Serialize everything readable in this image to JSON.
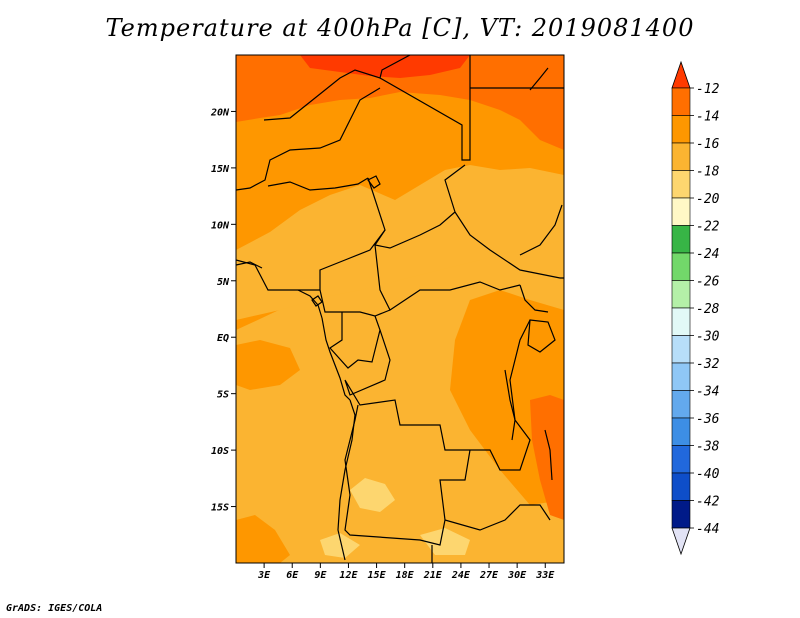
{
  "title": "Temperature at 400hPa [C], VT: 2019081400",
  "credit": "GrADS: IGES/COLA",
  "map": {
    "lon_range": [
      0,
      35
    ],
    "lat_range": [
      -20,
      25
    ],
    "lat_ticks": [
      {
        "value": 20,
        "label": "20N"
      },
      {
        "value": 15,
        "label": "15N"
      },
      {
        "value": 10,
        "label": "10N"
      },
      {
        "value": 5,
        "label": "5N"
      },
      {
        "value": 0,
        "label": "EQ"
      },
      {
        "value": -5,
        "label": "5S"
      },
      {
        "value": -10,
        "label": "10S"
      },
      {
        "value": -15,
        "label": "15S"
      }
    ],
    "lon_ticks": [
      {
        "value": 3,
        "label": "3E"
      },
      {
        "value": 6,
        "label": "6E"
      },
      {
        "value": 9,
        "label": "9E"
      },
      {
        "value": 12,
        "label": "12E"
      },
      {
        "value": 15,
        "label": "15E"
      },
      {
        "value": 18,
        "label": "18E"
      },
      {
        "value": 21,
        "label": "21E"
      },
      {
        "value": 24,
        "label": "24E"
      },
      {
        "value": 27,
        "label": "27E"
      },
      {
        "value": 30,
        "label": "30E"
      },
      {
        "value": 33,
        "label": "33E"
      }
    ]
  },
  "colorbar": {
    "levels": [
      "-12",
      "-14",
      "-16",
      "-18",
      "-20",
      "-22",
      "-24",
      "-26",
      "-28",
      "-30",
      "-32",
      "-34",
      "-36",
      "-38",
      "-40",
      "-42",
      "-44"
    ],
    "colors": [
      "#ff6f00",
      "#fe9700",
      "#fbb431",
      "#fdd66f",
      "#fff8c6",
      "#37b546",
      "#72d86a",
      "#b4f0a8",
      "#e2f9f7",
      "#b7def9",
      "#8fc7f6",
      "#63a9ed",
      "#3d8ee5",
      "#2168dc",
      "#0e4ec9",
      "#001a88"
    ],
    "top_arrow_color": "#ff3a00",
    "bottom_arrow_color": "#e2e3f5"
  },
  "palette": {
    "band_minus12": "#ff3a00",
    "band_minus14": "#ff6f00",
    "band_minus16": "#fe9700",
    "band_minus18": "#fbb431",
    "band_minus20": "#fdd66f"
  }
}
